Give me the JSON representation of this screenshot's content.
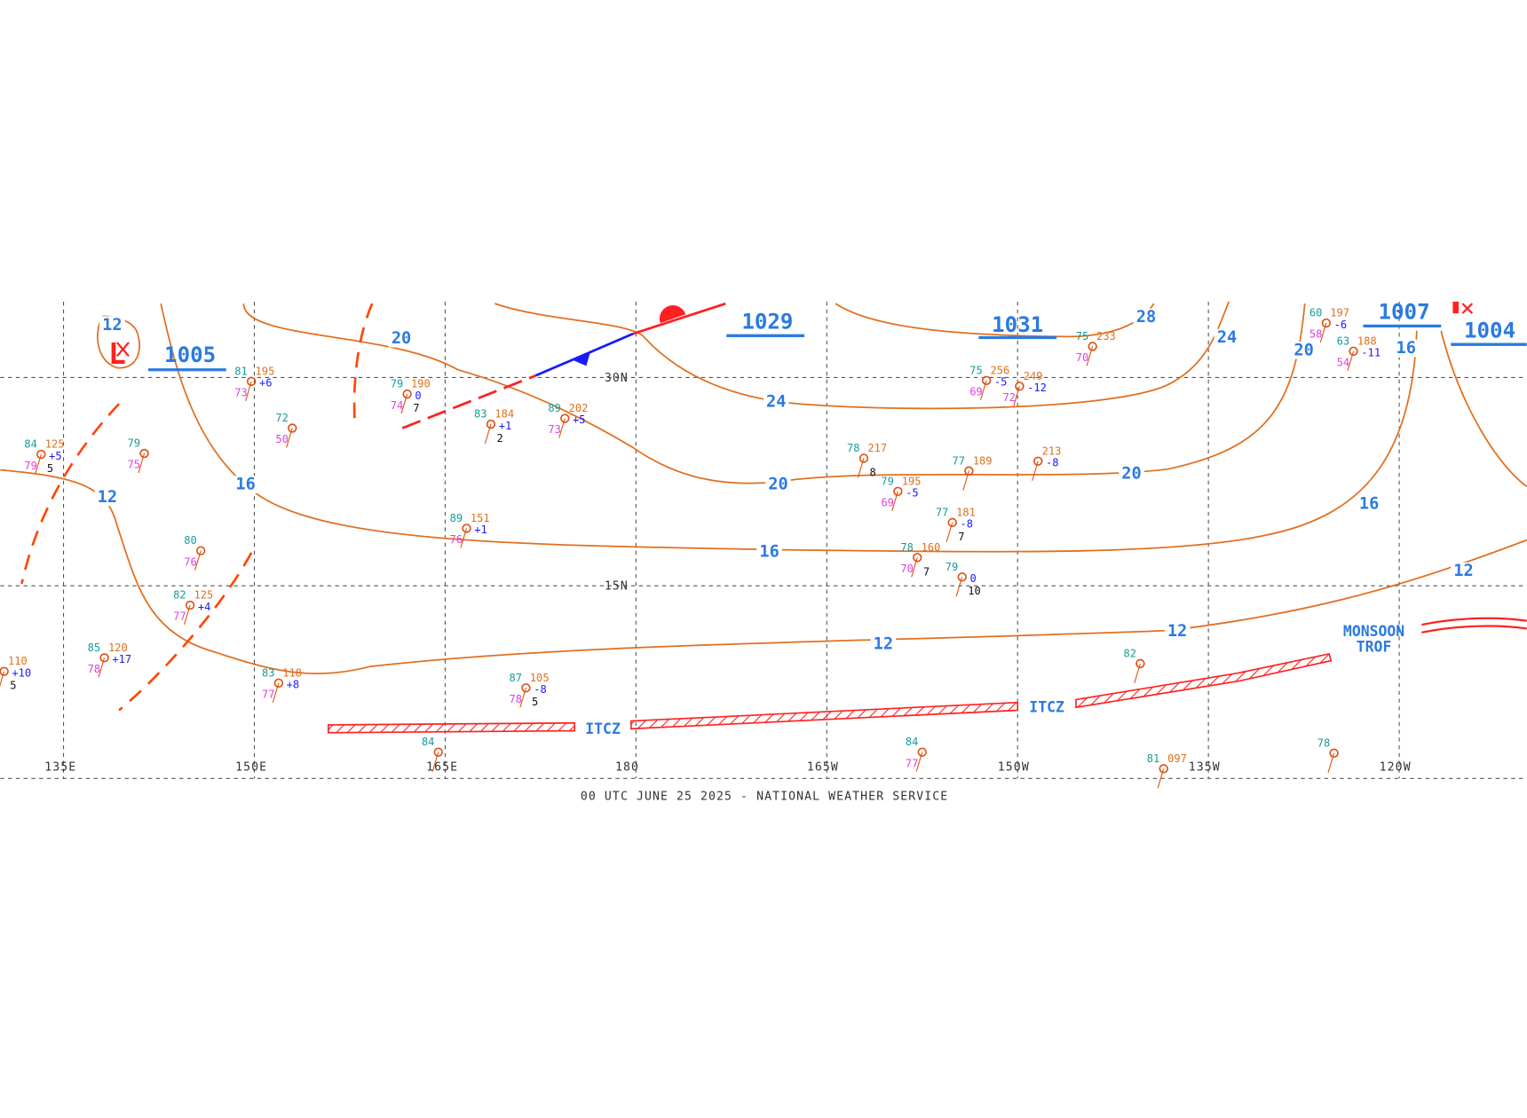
{
  "footer": "00 UTC JUNE 25 2025 - NATIONAL WEATHER SERVICE",
  "longitudes": [
    "135E",
    "150E",
    "165E",
    "180",
    "165W",
    "150W",
    "135W",
    "120W"
  ],
  "latitudes": [
    "30N",
    "15N"
  ],
  "isobar_labels": [
    12,
    20,
    16,
    12,
    24,
    20,
    16,
    12,
    12,
    12,
    16,
    20,
    20,
    24,
    28,
    16
  ],
  "centers": [
    {
      "symbol": "L",
      "pressure": "1005"
    },
    {
      "pressure": "1029"
    },
    {
      "pressure": "1031"
    },
    {
      "pressure": "1007"
    },
    {
      "pressure": "1004"
    }
  ],
  "features": [
    "ITCZ",
    "ITCZ",
    "MONSOON",
    "TROF"
  ],
  "stations": [
    {
      "temp": "81",
      "pressure": "195",
      "dewpoint": "73",
      "tendency": "+6"
    },
    {
      "temp": "79",
      "pressure": "190",
      "dewpoint": "74",
      "tendency": "0",
      "visibility": "7"
    },
    {
      "temp": "83",
      "pressure": "184",
      "tendency": "+1",
      "visibility": "2"
    },
    {
      "temp": "89",
      "pressure": "202",
      "dewpoint": "73",
      "tendency": "+5"
    },
    {
      "temp": "84",
      "pressure": "125",
      "dewpoint": "79",
      "tendency": "+5",
      "visibility": "5"
    },
    {
      "temp": "89",
      "pressure": "151",
      "dewpoint": "76",
      "tendency": "+1"
    },
    {
      "temp": "78",
      "pressure": "217",
      "visibility": "8"
    },
    {
      "temp": "77",
      "pressure": "189"
    },
    {
      "pressure": "213",
      "tendency": "-8"
    },
    {
      "temp": "75",
      "pressure": "256",
      "dewpoint": "69",
      "tendency": "-5"
    },
    {
      "pressure": "249",
      "dewpoint": "72",
      "tendency": "-12"
    },
    {
      "temp": "78",
      "pressure": "160",
      "dewpoint": "70",
      "visibility": "7"
    },
    {
      "temp": "79",
      "pressure": "195",
      "dewpoint": "69",
      "tendency": "-5"
    },
    {
      "temp": "63",
      "pressure": "188",
      "dewpoint": "54",
      "tendency": "-11"
    },
    {
      "temp": "60",
      "pressure": "197",
      "dewpoint": "58",
      "tendency": "-6"
    },
    {
      "temp": "82",
      "pressure": "125",
      "dewpoint": "77",
      "tendency": "+4"
    },
    {
      "temp": "85",
      "pressure": "120",
      "dewpoint": "78",
      "tendency": "+17"
    },
    {
      "temp": "83",
      "pressure": "118",
      "dewpoint": "77",
      "tendency": "+8"
    },
    {
      "temp": "87",
      "pressure": "105",
      "dewpoint": "78",
      "tendency": "-8",
      "visibility": "5"
    },
    {
      "pressure": "110",
      "tendency": "+10",
      "visibility": "5"
    },
    {
      "temp": "75",
      "pressure": "233",
      "dewpoint": "70"
    },
    {
      "temp": "80",
      "dewpoint": "76"
    },
    {
      "temp": "72",
      "dewpoint": "50"
    },
    {
      "temp": "79",
      "dewpoint": "75"
    },
    {
      "temp": "82"
    },
    {
      "temp": "84",
      "dewpoint": "77"
    },
    {
      "temp": "78"
    },
    {
      "temp": "84"
    },
    {
      "temp": "81",
      "pressure": "097"
    },
    {
      "temp": "77",
      "pressure": "181",
      "tendency": "-8",
      "visibility": "7"
    },
    {
      "temp": "79",
      "tendency": "0",
      "visibility": "10"
    }
  ]
}
